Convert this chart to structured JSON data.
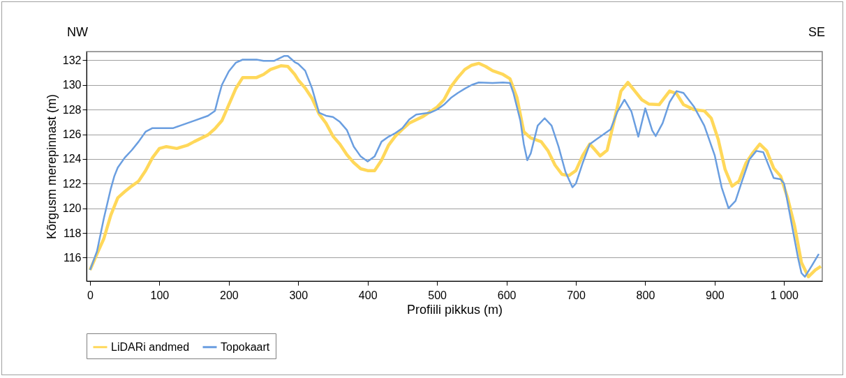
{
  "chart_data": {
    "type": "line",
    "xlabel": "Profiili pikkus (m)",
    "ylabel": "Kõrgusm merepinnast (m)",
    "annotations": [
      "NW",
      "SE"
    ],
    "xlim": [
      -5,
      1055
    ],
    "ylim": [
      114.1,
      132.7
    ],
    "xticks": [
      0,
      100,
      200,
      300,
      400,
      500,
      600,
      700,
      800,
      900,
      {
        "value": 1000,
        "label": "1 000"
      }
    ],
    "yticks": [
      116,
      118,
      120,
      122,
      124,
      126,
      128,
      130,
      132
    ],
    "grid": "y",
    "legend": "bottom",
    "marker": "none",
    "line_style": "solid",
    "series": [
      {
        "name": "LiDARi andmed",
        "color": "#ffd85a",
        "x": [
          0,
          10,
          20,
          30,
          40,
          50,
          60,
          70,
          80,
          90,
          100,
          110,
          125,
          140,
          150,
          170,
          180,
          190,
          200,
          210,
          220,
          240,
          250,
          260,
          275,
          285,
          295,
          300,
          310,
          320,
          330,
          340,
          350,
          360,
          370,
          380,
          390,
          400,
          410,
          420,
          430,
          440,
          450,
          460,
          480,
          500,
          510,
          520,
          530,
          540,
          550,
          560,
          570,
          580,
          595,
          605,
          615,
          625,
          635,
          650,
          660,
          670,
          680,
          690,
          700,
          710,
          720,
          725,
          735,
          745,
          755,
          765,
          775,
          785,
          795,
          805,
          820,
          835,
          845,
          855,
          870,
          885,
          895,
          905,
          915,
          925,
          935,
          945,
          955,
          965,
          975,
          985,
          995,
          1005,
          1015,
          1025,
          1035,
          1045,
          1053
        ],
        "values": [
          115.0,
          116.3,
          117.55,
          119.45,
          120.85,
          121.35,
          121.8,
          122.2,
          123.05,
          124.1,
          124.85,
          125.0,
          124.85,
          125.1,
          125.4,
          125.95,
          126.45,
          127.1,
          128.4,
          129.7,
          130.6,
          130.6,
          130.85,
          131.25,
          131.55,
          131.5,
          130.85,
          130.4,
          129.75,
          128.9,
          127.65,
          126.9,
          125.85,
          125.2,
          124.35,
          123.7,
          123.2,
          123.05,
          123.05,
          123.9,
          125.1,
          125.85,
          126.4,
          126.9,
          127.45,
          128.2,
          128.8,
          129.85,
          130.6,
          131.25,
          131.6,
          131.75,
          131.5,
          131.15,
          130.85,
          130.5,
          129.0,
          126.2,
          125.7,
          125.4,
          124.65,
          123.5,
          122.75,
          122.65,
          123.05,
          124.3,
          125.2,
          124.9,
          124.25,
          124.7,
          127.05,
          129.5,
          130.2,
          129.5,
          128.8,
          128.45,
          128.4,
          129.5,
          129.3,
          128.4,
          128.0,
          127.9,
          127.3,
          125.6,
          123.15,
          121.8,
          122.2,
          123.65,
          124.5,
          125.2,
          124.65,
          123.25,
          122.6,
          120.85,
          118.6,
          115.6,
          114.45,
          115.0,
          115.3
        ]
      },
      {
        "name": "Topokaart",
        "color": "#6a9ee0",
        "x": [
          0,
          10,
          20,
          30,
          35,
          40,
          50,
          60,
          70,
          80,
          90,
          100,
          120,
          130,
          150,
          170,
          180,
          185,
          190,
          200,
          210,
          220,
          240,
          250,
          265,
          280,
          285,
          295,
          300,
          310,
          320,
          330,
          340,
          350,
          360,
          370,
          380,
          390,
          400,
          410,
          420,
          430,
          440,
          450,
          460,
          470,
          490,
          500,
          510,
          520,
          530,
          540,
          550,
          560,
          580,
          595,
          605,
          610,
          620,
          625,
          630,
          635,
          645,
          655,
          665,
          675,
          685,
          695,
          700,
          710,
          720,
          730,
          750,
          760,
          770,
          780,
          790,
          800,
          810,
          815,
          825,
          835,
          845,
          855,
          870,
          885,
          900,
          910,
          920,
          930,
          940,
          950,
          960,
          970,
          985,
          995,
          1000,
          1010,
          1020,
          1025,
          1030,
          1040,
          1050
        ],
        "values": [
          115.0,
          116.5,
          119.2,
          121.6,
          122.6,
          123.3,
          124.1,
          124.7,
          125.4,
          126.2,
          126.5,
          126.5,
          126.5,
          126.7,
          127.1,
          127.5,
          127.9,
          129.0,
          130.0,
          131.1,
          131.8,
          132.05,
          132.05,
          131.95,
          131.95,
          132.35,
          132.35,
          131.85,
          131.7,
          131.15,
          129.7,
          127.75,
          127.5,
          127.4,
          127.0,
          126.35,
          125.0,
          124.2,
          123.8,
          124.2,
          125.4,
          125.8,
          126.1,
          126.5,
          127.2,
          127.6,
          127.75,
          128.0,
          128.4,
          128.95,
          129.35,
          129.7,
          130.0,
          130.2,
          130.15,
          130.2,
          130.15,
          129.35,
          127.1,
          125.2,
          123.9,
          124.45,
          126.7,
          127.3,
          126.7,
          125.0,
          122.95,
          121.7,
          122.0,
          123.7,
          125.2,
          125.6,
          126.4,
          127.85,
          128.8,
          127.85,
          125.8,
          128.1,
          126.3,
          125.85,
          126.9,
          128.6,
          129.5,
          129.35,
          128.25,
          126.7,
          124.3,
          121.7,
          120.0,
          120.6,
          122.3,
          123.95,
          124.65,
          124.55,
          122.45,
          122.35,
          122.0,
          119.0,
          116.0,
          114.75,
          114.45,
          115.35,
          116.3
        ]
      }
    ]
  }
}
